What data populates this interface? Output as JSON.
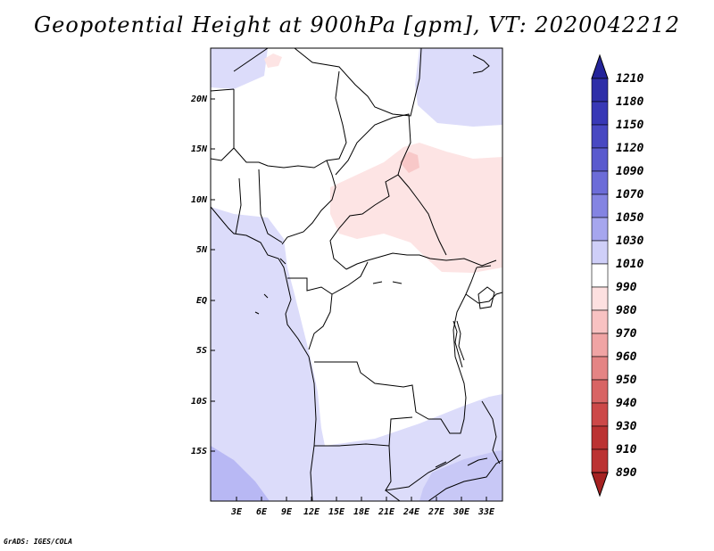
{
  "title": "Geopotential Height at 900hPa [gpm], VT: 2020042212",
  "map": {
    "lat_labels": [
      "20N",
      "15N",
      "10N",
      "5N",
      "EQ",
      "5S",
      "10S",
      "15S"
    ],
    "lon_labels": [
      "3E",
      "6E",
      "9E",
      "12E",
      "15E",
      "18E",
      "21E",
      "24E",
      "27E",
      "30E",
      "33E"
    ]
  },
  "colorbar": {
    "levels": [
      "1210",
      "1180",
      "1150",
      "1120",
      "1090",
      "1070",
      "1050",
      "1030",
      "1010",
      "990",
      "980",
      "970",
      "960",
      "950",
      "940",
      "930",
      "910",
      "890"
    ],
    "colors": [
      "#24249a",
      "#2e2ea8",
      "#3838b6",
      "#4848c2",
      "#5a5ace",
      "#6c6cd8",
      "#8484e2",
      "#a6a6ee",
      "#cfcff8",
      "#ffffff",
      "#fde0e0",
      "#f8c2c2",
      "#f0a4a4",
      "#e48484",
      "#d86464",
      "#cc4848",
      "#bb3232",
      "#a62222"
    ]
  },
  "credit": "GrADS: IGES/COLA"
}
